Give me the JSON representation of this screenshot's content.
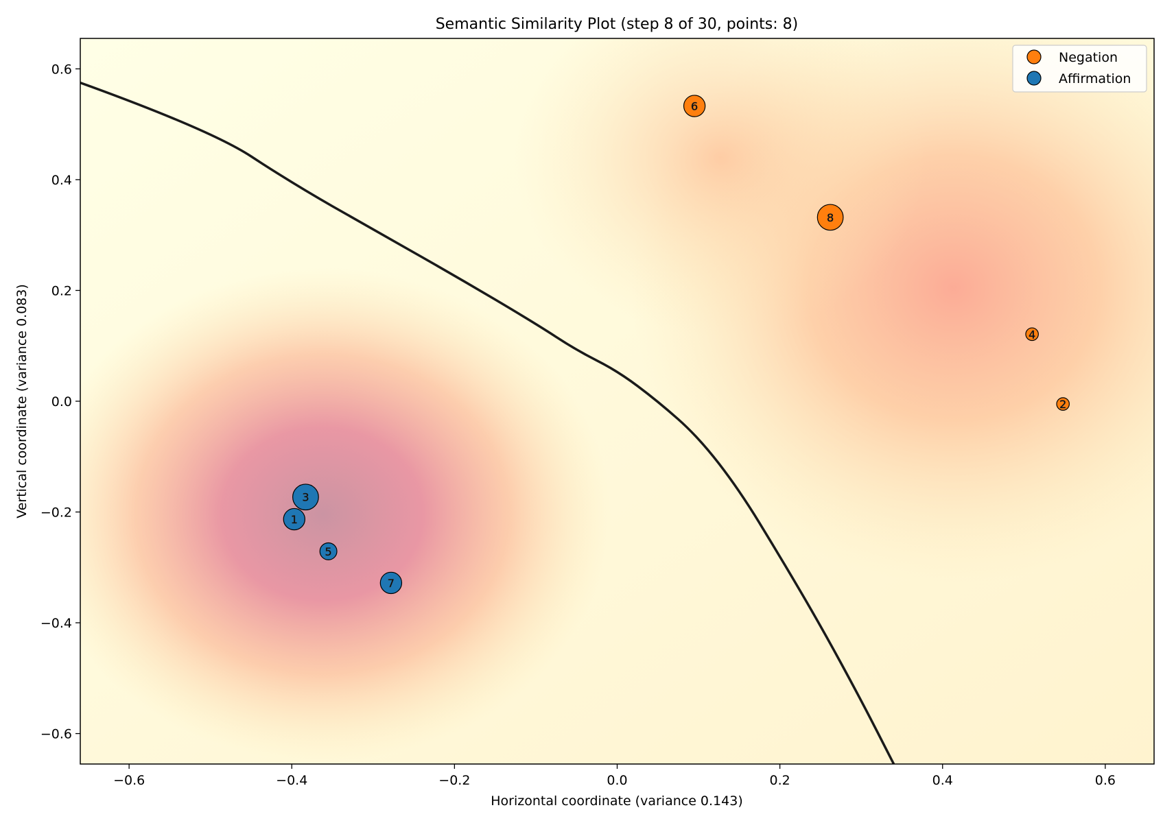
{
  "chart_data": {
    "type": "scatter",
    "title": "Semantic Similarity Plot (step 8 of 30, points: 8)",
    "xlabel": "Horizontal coordinate (variance 0.143)",
    "ylabel": "Vertical coordinate (variance 0.083)",
    "xlim": [
      -0.66,
      0.66
    ],
    "ylim": [
      -0.655,
      0.655
    ],
    "x_ticks": [
      -0.6,
      -0.4,
      -0.2,
      0.0,
      0.2,
      0.4,
      0.6
    ],
    "x_tick_labels": [
      "−0.6",
      "−0.4",
      "−0.2",
      "0.0",
      "0.2",
      "0.4",
      "0.6"
    ],
    "y_ticks": [
      0.6,
      0.4,
      0.2,
      0.0,
      -0.2,
      -0.4,
      -0.6
    ],
    "y_tick_labels": [
      "0.6",
      "0.4",
      "0.2",
      "0.0",
      "−0.2",
      "−0.4",
      "−0.6"
    ],
    "grid": false,
    "legend": {
      "placement": "top-right"
    },
    "series": [
      {
        "name": "Negation",
        "color": "#ff7f0e",
        "points": [
          {
            "label": "2",
            "x": 0.548,
            "y": -0.005,
            "size": 1
          },
          {
            "label": "4",
            "x": 0.51,
            "y": 0.121,
            "size": 1
          },
          {
            "label": "6",
            "x": 0.095,
            "y": 0.533,
            "size": 3
          },
          {
            "label": "8",
            "x": 0.262,
            "y": 0.332,
            "size": 4
          }
        ]
      },
      {
        "name": "Affirmation",
        "color": "#1f77b4",
        "points": [
          {
            "label": "1",
            "x": -0.397,
            "y": -0.213,
            "size": 3
          },
          {
            "label": "3",
            "x": -0.383,
            "y": -0.173,
            "size": 4
          },
          {
            "label": "5",
            "x": -0.355,
            "y": -0.271,
            "size": 2
          },
          {
            "label": "7",
            "x": -0.278,
            "y": -0.328,
            "size": 3
          }
        ]
      }
    ],
    "boundary_curve": [
      [
        -0.66,
        0.575
      ],
      [
        -0.5,
        0.49
      ],
      [
        -0.4,
        0.394
      ],
      [
        -0.3,
        0.31
      ],
      [
        -0.2,
        0.227
      ],
      [
        -0.1,
        0.14
      ],
      [
        -0.05,
        0.092
      ],
      [
        0.0,
        0.055
      ],
      [
        0.05,
        0.0
      ],
      [
        0.1,
        -0.065
      ],
      [
        0.15,
        -0.16
      ],
      [
        0.2,
        -0.28
      ],
      [
        0.25,
        -0.405
      ],
      [
        0.3,
        -0.54
      ],
      [
        0.34,
        -0.655
      ]
    ],
    "density_colors": {
      "low": "#ffffe5",
      "mid": "#fdbb84",
      "high": "#d08a9e"
    }
  }
}
